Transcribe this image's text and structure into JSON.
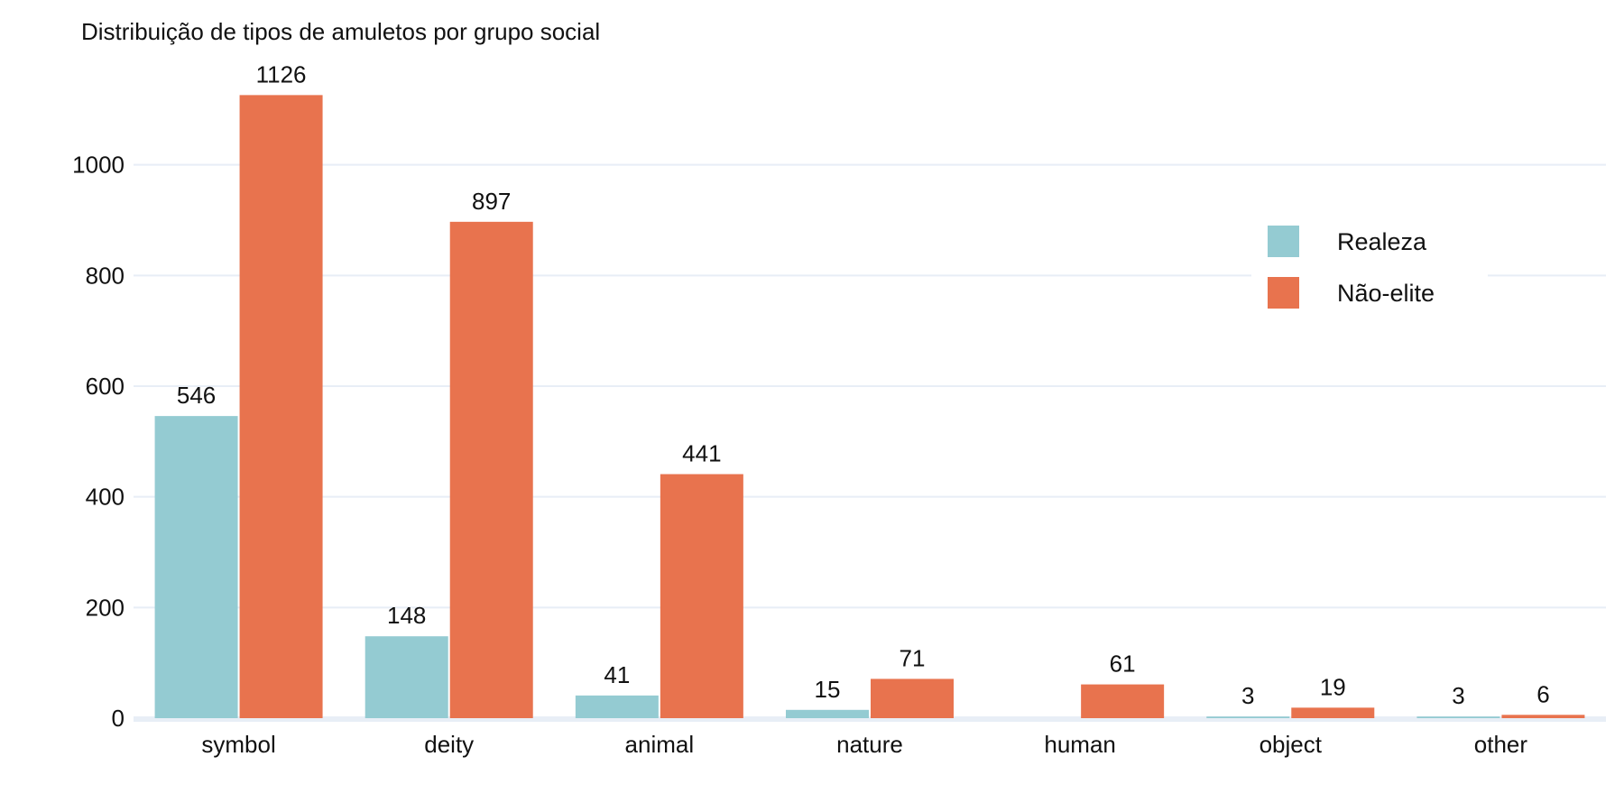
{
  "chart_data": {
    "type": "bar",
    "title": "Distribuição de tipos de amuletos por grupo social",
    "xlabel": "",
    "ylabel": "",
    "categories": [
      "symbol",
      "deity",
      "animal",
      "nature",
      "human",
      "object",
      "other"
    ],
    "series": [
      {
        "name": "Realeza",
        "color": "#94cbd2",
        "values": [
          546,
          148,
          41,
          15,
          0,
          3,
          3
        ],
        "labels": [
          "546",
          "148",
          "41",
          "15",
          "",
          "3",
          "3"
        ]
      },
      {
        "name": "Não-elite",
        "color": "#e8734e",
        "values": [
          1126,
          897,
          441,
          71,
          61,
          19,
          6
        ],
        "labels": [
          "1126",
          "897",
          "441",
          "71",
          "61",
          "19",
          "6"
        ]
      }
    ],
    "ylim": [
      0,
      1200
    ],
    "yticks": [
      0,
      200,
      400,
      600,
      800,
      1000
    ],
    "grid": true,
    "legend_position": "top-right"
  }
}
